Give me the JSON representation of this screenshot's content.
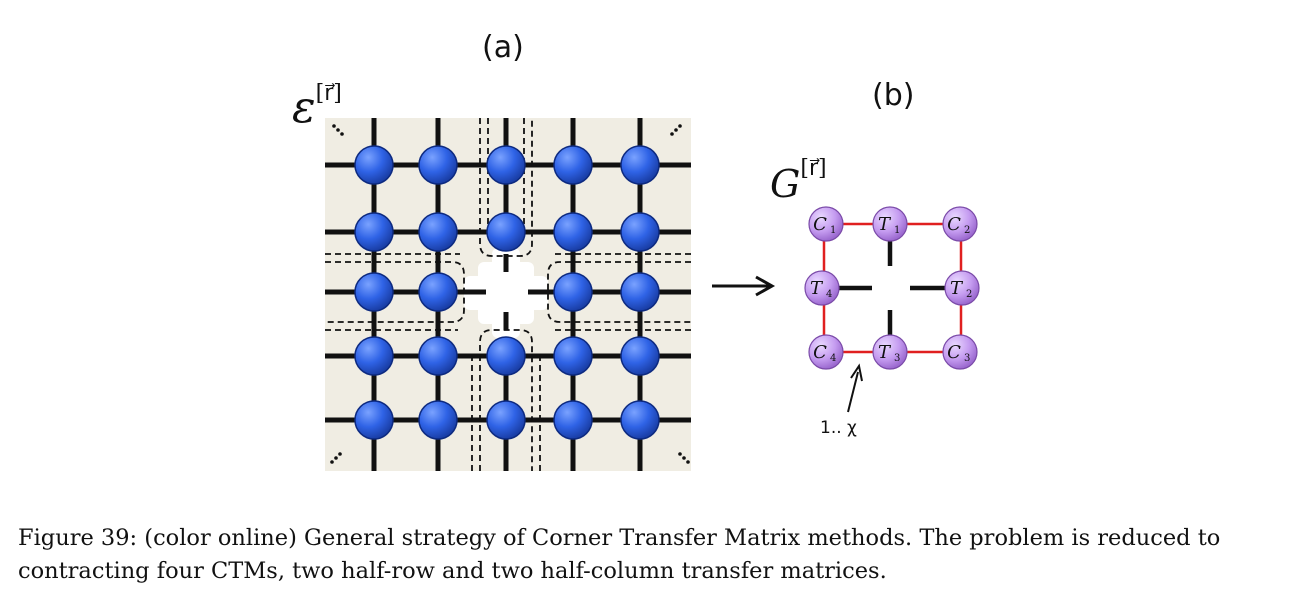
{
  "panel_a": {
    "label": "(a)",
    "symbol": "ε",
    "superscript": "[r⃗]"
  },
  "panel_b": {
    "label": "(b)",
    "symbol": "G",
    "superscript": "[r⃗]",
    "tensors": [
      {
        "name": "C",
        "index": "1"
      },
      {
        "name": "T",
        "index": "1"
      },
      {
        "name": "C",
        "index": "2"
      },
      {
        "name": "T",
        "index": "4"
      },
      {
        "name": "T",
        "index": "2"
      },
      {
        "name": "C",
        "index": "4"
      },
      {
        "name": "T",
        "index": "3"
      },
      {
        "name": "C",
        "index": "3"
      }
    ],
    "bond_label": "1.. χ"
  },
  "colors": {
    "background": "#f0ede3",
    "node": "#2f63e6",
    "ctm_node": "#c59cf0",
    "ctm_bond": "#e02020"
  },
  "caption": "Figure 39: (color online) General strategy of Corner Transfer Matrix methods. The problem is reduced to contracting four CTMs, two half-row and two half-column transfer matrices."
}
